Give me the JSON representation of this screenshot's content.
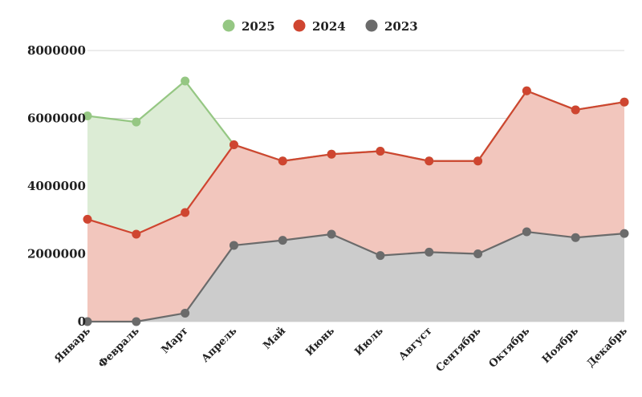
{
  "chart_data": {
    "type": "area",
    "stacked": true,
    "categories": [
      "Январь",
      "Февраль",
      "Март",
      "Апрель",
      "Май",
      "Июнь",
      "Июль",
      "Август",
      "Сентябрь",
      "Октябрь",
      "Ноябрь",
      "Декабрь"
    ],
    "series": [
      {
        "name": "2023",
        "color": "#6b6b6b",
        "fill": "#cccccc",
        "values": [
          0,
          0,
          250000,
          2250000,
          2400000,
          2580000,
          1950000,
          2050000,
          2000000,
          2650000,
          2480000,
          2600000
        ]
      },
      {
        "name": "2024",
        "color": "#cf4530",
        "fill": "#f2c6bd",
        "values": [
          3020000,
          2580000,
          2970000,
          2970000,
          2340000,
          2360000,
          3080000,
          2690000,
          2740000,
          4160000,
          3770000,
          3880000
        ]
      },
      {
        "name": "2025",
        "color": "#95c783",
        "fill": "#dcecd5",
        "values": [
          3050000,
          3310000,
          3880000,
          0,
          0,
          0,
          0,
          0,
          0,
          0,
          0,
          0
        ]
      }
    ],
    "legend_order": [
      "2025",
      "2024",
      "2023"
    ],
    "yticks": [
      "0",
      "2000000",
      "4000000",
      "6000000",
      "8000000"
    ],
    "ylim": [
      0,
      8000000
    ],
    "legend_position": "top-center",
    "grid": true
  }
}
